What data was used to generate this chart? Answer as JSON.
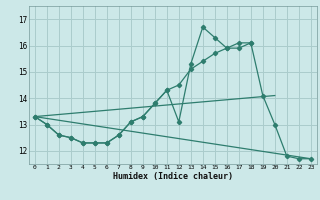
{
  "title": "",
  "xlabel": "Humidex (Indice chaleur)",
  "background_color": "#cce8e8",
  "grid_color": "#aacccc",
  "line_color": "#2e7d6e",
  "xlim": [
    -0.5,
    23.5
  ],
  "ylim": [
    11.5,
    17.5
  ],
  "yticks": [
    12,
    13,
    14,
    15,
    16,
    17
  ],
  "xticks": [
    0,
    1,
    2,
    3,
    4,
    5,
    6,
    7,
    8,
    9,
    10,
    11,
    12,
    13,
    14,
    15,
    16,
    17,
    18,
    19,
    20,
    21,
    22,
    23
  ],
  "series1_x": [
    0,
    1,
    2,
    3,
    4,
    5,
    6,
    7,
    8,
    9,
    10,
    11,
    12,
    13,
    14,
    15,
    16,
    17,
    18,
    19,
    20,
    21,
    22,
    23
  ],
  "series1_y": [
    13.3,
    13.0,
    12.6,
    12.5,
    12.3,
    12.3,
    12.3,
    12.6,
    13.1,
    13.3,
    13.8,
    14.3,
    13.1,
    15.3,
    16.7,
    16.3,
    15.9,
    15.9,
    16.1,
    14.1,
    13.0,
    11.8,
    11.7,
    11.7
  ],
  "series2_x": [
    0,
    1,
    2,
    3,
    4,
    5,
    6,
    7,
    8,
    9,
    10,
    11,
    12,
    13,
    14,
    15,
    16,
    17,
    18
  ],
  "series2_y": [
    13.3,
    13.0,
    12.6,
    12.5,
    12.3,
    12.3,
    12.3,
    12.6,
    13.1,
    13.3,
    13.8,
    14.3,
    14.5,
    15.1,
    15.4,
    15.7,
    15.9,
    16.1,
    16.1
  ],
  "series3_x": [
    0,
    20
  ],
  "series3_y": [
    13.3,
    14.1
  ],
  "series4_x": [
    0,
    23
  ],
  "series4_y": [
    13.3,
    11.7
  ]
}
